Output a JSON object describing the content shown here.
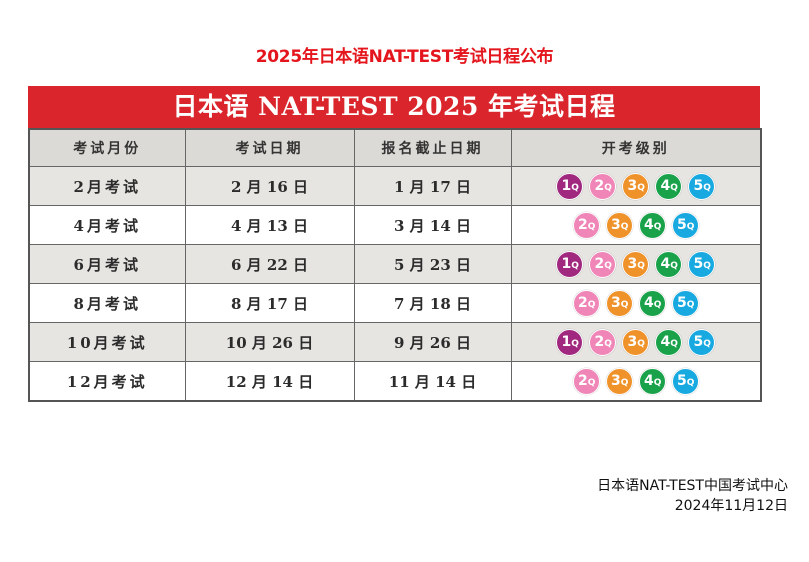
{
  "doc": {
    "title": "2025年日本语NAT-TEST考试日程公布"
  },
  "schedule": {
    "banner": "日本语 NAT-TEST 2025 年考试日程",
    "headers": [
      "考试月份",
      "考试日期",
      "报名截止日期",
      "开考级别"
    ],
    "rows": [
      {
        "month": "2月考试",
        "exam_date": "2 月 16 日",
        "deadline": "1 月 17 日",
        "levels": [
          "1",
          "2",
          "3",
          "4",
          "5"
        ]
      },
      {
        "month": "4月考试",
        "exam_date": "4 月 13 日",
        "deadline": "3 月 14 日",
        "levels": [
          "2",
          "3",
          "4",
          "5"
        ]
      },
      {
        "month": "6月考试",
        "exam_date": "6 月 22 日",
        "deadline": "5 月 23 日",
        "levels": [
          "1",
          "2",
          "3",
          "4",
          "5"
        ]
      },
      {
        "month": "8月考试",
        "exam_date": "8 月 17 日",
        "deadline": "7 月 18 日",
        "levels": [
          "2",
          "3",
          "4",
          "5"
        ]
      },
      {
        "month": "10月考试",
        "exam_date": "10 月 26 日",
        "deadline": "9 月 26 日",
        "levels": [
          "1",
          "2",
          "3",
          "4",
          "5"
        ]
      },
      {
        "month": "12月考试",
        "exam_date": "12 月 14 日",
        "deadline": "11 月 14 日",
        "levels": [
          "2",
          "3",
          "4",
          "5"
        ]
      }
    ],
    "level_suffix": "Q",
    "level_colors": {
      "1": "#a0287f",
      "2": "#ef86b7",
      "3": "#f0922a",
      "4": "#1aa24b",
      "5": "#17a9e0"
    }
  },
  "footer": {
    "organization": "日本语NAT-TEST中国考试中心",
    "date": "2024年11月12日"
  }
}
